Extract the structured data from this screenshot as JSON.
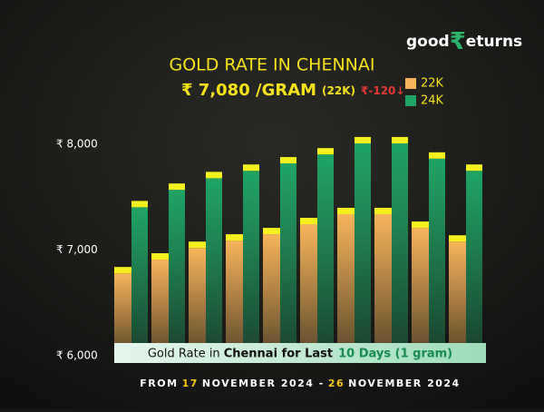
{
  "chart_data": {
    "type": "bar",
    "brand": {
      "left": "good",
      "mark": "₹",
      "right": "eturns"
    },
    "title": "GOLD RATE IN CHENNAI",
    "price": "₹ 7,080 /GRAM",
    "price_unit": "(22K)",
    "change": "₹-120↓",
    "banner": [
      "Gold Rate in",
      "Chennai for Last",
      "10 Days (1 gram)"
    ],
    "footer": [
      "FROM",
      "17",
      "NOVEMBER 2024 -",
      "26",
      "NOVEMBER 2024"
    ],
    "categories": [
      null,
      null,
      null,
      null,
      null,
      null,
      null,
      null,
      null,
      null
    ],
    "series": [
      {
        "name": "22K",
        "color": "#f7b45a",
        "values": [
          6780,
          6910,
          7020,
          7090,
          7150,
          7245,
          7340,
          7340,
          7210,
          7080
        ]
      },
      {
        "name": "24K",
        "color": "#1fa565",
        "values": [
          7405,
          7570,
          7680,
          7750,
          7820,
          7905,
          8010,
          8010,
          7865,
          7750
        ]
      }
    ],
    "ylim": [
      6000,
      8250
    ],
    "yticks": [
      {
        "value": 6000,
        "label": "₹ 6,000"
      },
      {
        "value": 7000,
        "label": "₹ 7,000"
      },
      {
        "value": 8000,
        "label": "₹ 8,000"
      }
    ],
    "grid": false
  }
}
